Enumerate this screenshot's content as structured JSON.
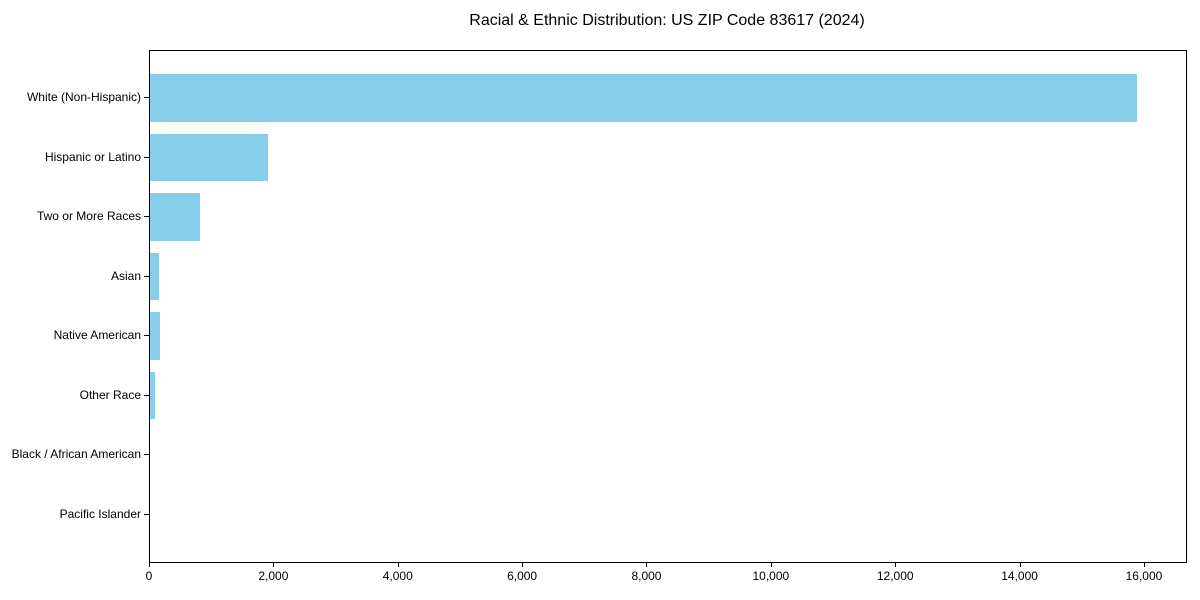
{
  "chart_data": {
    "type": "bar",
    "orientation": "horizontal",
    "title": "Racial & Ethnic Distribution: US ZIP Code 83617 (2024)",
    "categories": [
      "White (Non-Hispanic)",
      "Hispanic or Latino",
      "Two or More Races",
      "Asian",
      "Native American",
      "Other Race",
      "Black / African American",
      "Pacific Islander"
    ],
    "values": [
      15870,
      1900,
      800,
      150,
      160,
      85,
      0,
      0
    ],
    "xlabel": "",
    "ylabel": "",
    "xlim": [
      0,
      16660
    ],
    "xticks": {
      "values": [
        0,
        2000,
        4000,
        6000,
        8000,
        10000,
        12000,
        14000,
        16000
      ],
      "labels": [
        "0",
        "2,000",
        "4,000",
        "6,000",
        "8,000",
        "10,000",
        "12,000",
        "14,000",
        "16,000"
      ]
    },
    "bar_color": "#87CEEB",
    "axis_color": "#000000",
    "text_color": "#000000",
    "background_color": "#ffffff",
    "grid": false,
    "legend": false
  }
}
